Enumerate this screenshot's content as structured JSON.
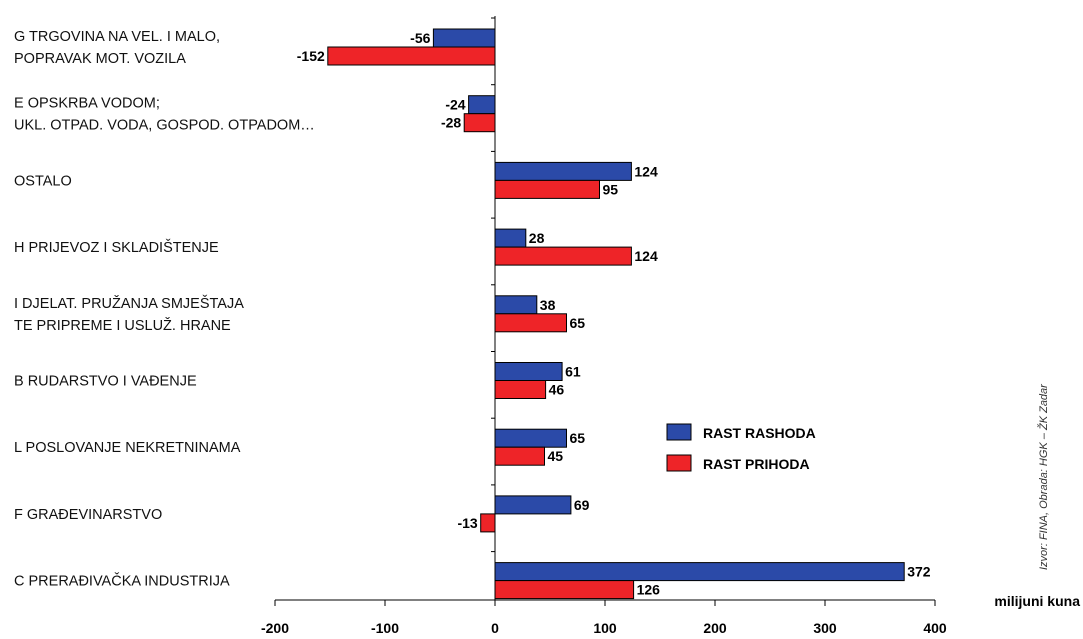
{
  "chart_data": {
    "type": "bar",
    "orientation": "horizontal",
    "categories": [
      [
        "G TRGOVINA NA VEL. I MALO,",
        "POPRAVAK MOT. VOZILA"
      ],
      [
        "E OPSKRBA VODOM;",
        "UKL. OTPAD. VODA, GOSPOD. OTPADOM…"
      ],
      [
        "OSTALO"
      ],
      [
        "H PRIJEVOZ I SKLADIŠTENJE"
      ],
      [
        "I DJELAT. PRUŽANJA SMJEŠTAJA",
        "TE PRIPREME I USLUŽ. HRANE"
      ],
      [
        "B RUDARSTVO I VAĐENJE"
      ],
      [
        "L POSLOVANJE NEKRETNINAMA"
      ],
      [
        "F GRAĐEVINARSTVO"
      ],
      [
        "C PRERAĐIVAČKA INDUSTRIJA"
      ]
    ],
    "series": [
      {
        "name": "RAST RASHODA",
        "color": "#2b4aa8",
        "values": [
          -56,
          -24,
          124,
          28,
          38,
          61,
          65,
          69,
          372
        ]
      },
      {
        "name": "RAST PRIHODA",
        "color": "#ee2428",
        "values": [
          -152,
          -28,
          95,
          124,
          65,
          46,
          45,
          -13,
          126
        ]
      }
    ],
    "xlim": [
      -200,
      400
    ],
    "xticks": [
      -200,
      -100,
      0,
      100,
      200,
      300,
      400
    ],
    "unit_label": "milijuni kuna",
    "legend_position": "right",
    "grid": false
  },
  "source_note": "Izvor: FINA, Obrada: HGK – ŽK Zadar"
}
